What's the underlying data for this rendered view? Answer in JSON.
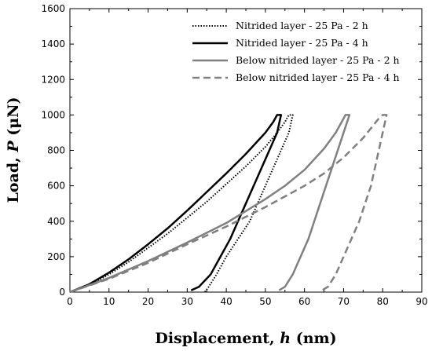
{
  "chart_data": {
    "type": "line",
    "title": "",
    "xlabel": "Displacement, h (nm)",
    "xlabel_parts": {
      "main": "Displacement, ",
      "var": "h",
      "unit": " (nm)"
    },
    "ylabel": "Load, P (μN)",
    "ylabel_parts": {
      "main": "Load, ",
      "var": "P",
      "unit": " (μN)"
    },
    "xlim": [
      0,
      90
    ],
    "ylim": [
      0,
      1600
    ],
    "xticks": [
      0,
      10,
      20,
      30,
      40,
      50,
      60,
      70,
      80,
      90
    ],
    "yticks": [
      0,
      200,
      400,
      600,
      800,
      1000,
      1200,
      1400,
      1600
    ],
    "grid": false,
    "legend_position": "top-right",
    "series": [
      {
        "name": "Nitrided layer - 25 Pa - 2 h",
        "color": "#000000",
        "style": "dotted",
        "loading": [
          [
            0,
            0
          ],
          [
            5,
            40
          ],
          [
            10,
            100
          ],
          [
            15,
            170
          ],
          [
            20,
            250
          ],
          [
            25,
            330
          ],
          [
            30,
            420
          ],
          [
            35,
            510
          ],
          [
            40,
            610
          ],
          [
            45,
            710
          ],
          [
            50,
            820
          ],
          [
            53,
            900
          ],
          [
            55,
            960
          ],
          [
            56,
            1000
          ]
        ],
        "hold": [
          [
            56,
            1000
          ],
          [
            57,
            1000
          ]
        ],
        "unloading": [
          [
            57,
            1000
          ],
          [
            56,
            900
          ],
          [
            54,
            800
          ],
          [
            52,
            700
          ],
          [
            50,
            600
          ],
          [
            48,
            500
          ],
          [
            46,
            400
          ],
          [
            43,
            300
          ],
          [
            40,
            200
          ],
          [
            37.5,
            100
          ],
          [
            35.5,
            30
          ],
          [
            34.5,
            0
          ]
        ]
      },
      {
        "name": "Nitrided layer - 25 Pa - 4 h",
        "color": "#000000",
        "style": "solid",
        "loading": [
          [
            0,
            0
          ],
          [
            5,
            45
          ],
          [
            10,
            110
          ],
          [
            15,
            185
          ],
          [
            20,
            270
          ],
          [
            25,
            360
          ],
          [
            30,
            460
          ],
          [
            35,
            565
          ],
          [
            40,
            670
          ],
          [
            45,
            780
          ],
          [
            50,
            900
          ],
          [
            52,
            960
          ],
          [
            53,
            1000
          ]
        ],
        "hold": [
          [
            53,
            1000
          ],
          [
            54,
            1000
          ]
        ],
        "unloading": [
          [
            54,
            1000
          ],
          [
            53,
            900
          ],
          [
            51,
            800
          ],
          [
            49,
            700
          ],
          [
            47,
            600
          ],
          [
            45,
            500
          ],
          [
            43,
            400
          ],
          [
            41,
            300
          ],
          [
            38.5,
            200
          ],
          [
            36,
            100
          ],
          [
            33,
            30
          ],
          [
            31,
            10
          ]
        ]
      },
      {
        "name": "Below nitrided layer - 25 Pa - 2 h",
        "color": "#808080",
        "style": "solid",
        "loading": [
          [
            0,
            0
          ],
          [
            10,
            80
          ],
          [
            20,
            175
          ],
          [
            30,
            280
          ],
          [
            40,
            390
          ],
          [
            50,
            525
          ],
          [
            55,
            600
          ],
          [
            60,
            690
          ],
          [
            65,
            810
          ],
          [
            68,
            900
          ],
          [
            70,
            980
          ],
          [
            70.5,
            1000
          ]
        ],
        "hold": [
          [
            70.5,
            1000
          ],
          [
            71.5,
            1000
          ]
        ],
        "unloading": [
          [
            71.5,
            1000
          ],
          [
            70,
            900
          ],
          [
            68.5,
            800
          ],
          [
            67,
            700
          ],
          [
            65.5,
            600
          ],
          [
            64,
            500
          ],
          [
            62.5,
            400
          ],
          [
            61,
            300
          ],
          [
            59,
            200
          ],
          [
            57,
            100
          ],
          [
            55,
            30
          ],
          [
            53.5,
            10
          ]
        ]
      },
      {
        "name": "Below nitrided layer - 25 Pa - 4 h",
        "color": "#808080",
        "style": "dashed",
        "loading": [
          [
            0,
            0
          ],
          [
            10,
            75
          ],
          [
            20,
            165
          ],
          [
            30,
            270
          ],
          [
            40,
            370
          ],
          [
            50,
            480
          ],
          [
            60,
            600
          ],
          [
            65,
            670
          ],
          [
            70,
            760
          ],
          [
            75,
            870
          ],
          [
            79,
            980
          ],
          [
            80,
            1000
          ]
        ],
        "hold": [
          [
            80,
            1000
          ],
          [
            81,
            1000
          ]
        ],
        "unloading": [
          [
            81,
            1000
          ],
          [
            80,
            900
          ],
          [
            79,
            800
          ],
          [
            78,
            700
          ],
          [
            77,
            600
          ],
          [
            75.5,
            500
          ],
          [
            74,
            400
          ],
          [
            72,
            300
          ],
          [
            70,
            200
          ],
          [
            68,
            100
          ],
          [
            66,
            30
          ],
          [
            64.5,
            10
          ]
        ]
      }
    ]
  }
}
